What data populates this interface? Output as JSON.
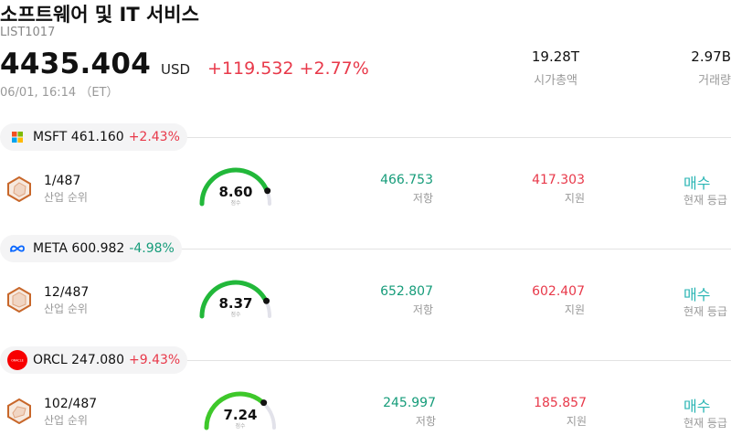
{
  "header": {
    "title": "소프트웨어 및 IT 서비스",
    "code": "LIST1017",
    "price": "4435.404",
    "currency": "USD",
    "change": "+119.532 +2.77%",
    "time": "06/01, 16:14 （ET）",
    "stats": [
      {
        "value": "19.28T",
        "label": "시가총액"
      },
      {
        "value": "2.97B",
        "label": "거래량"
      }
    ]
  },
  "stocks": [
    {
      "ticker": "MSFT",
      "price": "461.160",
      "change": "+2.43%",
      "direction": "up",
      "logo": "microsoft-logo-icon",
      "rank": "1/487",
      "rank_label": "산업 순위",
      "score": "8.60",
      "score_label": "점수",
      "score_fraction": 0.86,
      "resistance": "466.753",
      "resistance_label": "저항",
      "support": "417.303",
      "support_label": "지원",
      "rating": "매수",
      "rating_label": "현재 등급"
    },
    {
      "ticker": "META",
      "price": "600.982",
      "change": "-4.98%",
      "direction": "down",
      "logo": "meta-logo-icon",
      "rank": "12/487",
      "rank_label": "산업 순위",
      "score": "8.37",
      "score_label": "점수",
      "score_fraction": 0.837,
      "resistance": "652.807",
      "resistance_label": "저항",
      "support": "602.407",
      "support_label": "지원",
      "rating": "매수",
      "rating_label": "현재 등급"
    },
    {
      "ticker": "ORCL",
      "price": "247.080",
      "change": "+9.43%",
      "direction": "up",
      "logo": "oracle-logo-icon",
      "logo_text": "ORACLE",
      "rank": "102/487",
      "rank_label": "산업 순위",
      "score": "7.24",
      "score_label": "점수",
      "score_fraction": 0.724,
      "resistance": "245.997",
      "resistance_label": "저항",
      "support": "185.857",
      "support_label": "지원",
      "rating": "매수",
      "rating_label": "현재 등급"
    }
  ],
  "colors": {
    "positive": "#e8394a",
    "negative": "#169c7a",
    "rating": "#2ab5b4",
    "gauge_fill": "#22b83a",
    "gauge_track": "#e2e2ea"
  }
}
